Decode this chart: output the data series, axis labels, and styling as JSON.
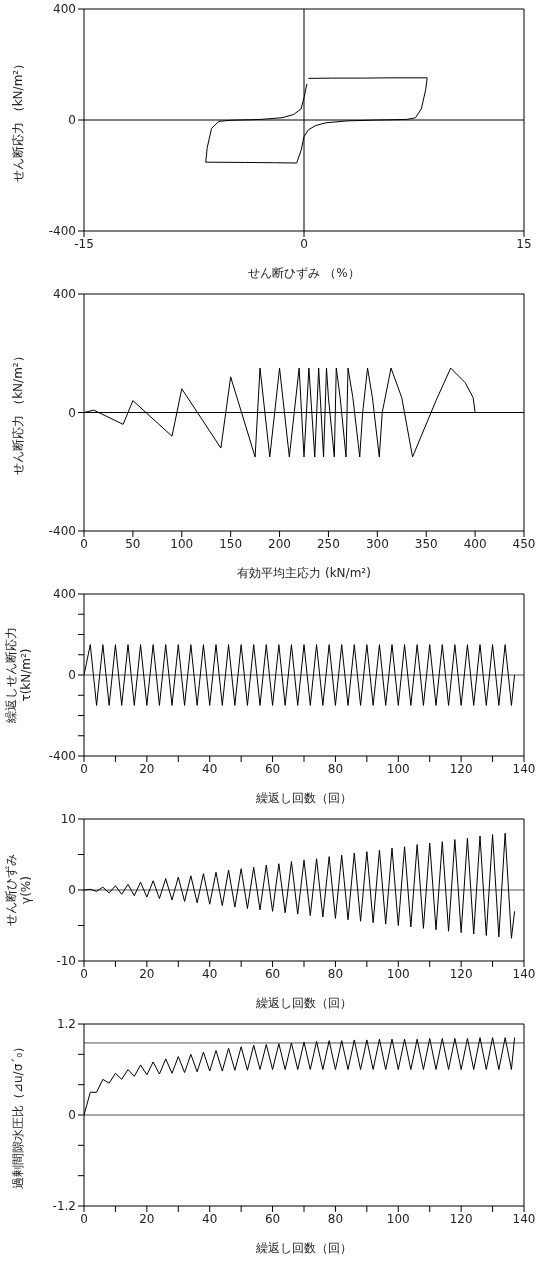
{
  "chart_data": [
    {
      "type": "line",
      "xlabel": "せん断ひずみ （%）",
      "ylabel": "せん断応力 （kN/m²）",
      "xlim": [
        -15,
        15
      ],
      "xticks": [
        -15,
        0,
        15
      ],
      "ylim": [
        -400,
        400
      ],
      "yticks": [
        -400,
        0,
        400
      ],
      "grid": false,
      "ref_lines": [
        {
          "axis": "x",
          "value": 0,
          "color": "#000000"
        },
        {
          "axis": "y",
          "value": 0,
          "color": "#000000"
        }
      ],
      "series": [
        {
          "color": "#000000",
          "x": [
            0.3,
            2,
            4,
            6,
            8.4,
            8.3,
            8.0,
            7.6,
            7,
            5,
            3,
            1.5,
            0.8,
            0.3,
            0,
            -0.2,
            -0.5,
            -2,
            -4,
            -6.7,
            -6.6,
            -6.3,
            -5.8,
            -5,
            -3,
            -1.5,
            -0.7,
            -0.2,
            0,
            0.2
          ],
          "values": [
            150,
            151,
            151,
            152,
            152,
            110,
            40,
            8,
            2,
            0,
            -3,
            -10,
            -20,
            -35,
            -60,
            -110,
            -155,
            -154,
            -153,
            -152,
            -100,
            -30,
            -5,
            -1,
            2,
            8,
            20,
            40,
            80,
            130
          ]
        }
      ]
    },
    {
      "type": "line",
      "xlabel": "有効平均主応力 (kN/m²)",
      "ylabel": "せん断応力 （kN/m²）",
      "xlim": [
        0,
        450
      ],
      "xticks": [
        0,
        50,
        100,
        150,
        200,
        250,
        300,
        350,
        400,
        450
      ],
      "ylim": [
        -400,
        400
      ],
      "yticks": [
        -400,
        0,
        400
      ],
      "grid": false,
      "ref_lines": [
        {
          "axis": "y",
          "value": 0,
          "color": "#000000"
        }
      ],
      "series": [
        {
          "color": "#000000",
          "x": [
            400,
            398,
            390,
            375,
            360,
            336,
            325,
            314,
            305,
            302,
            295,
            290,
            285,
            282,
            275,
            270,
            268,
            262,
            258,
            256,
            250,
            248,
            245,
            240,
            236,
            230,
            225,
            220,
            210,
            200,
            190,
            180,
            175,
            150,
            140,
            100,
            90,
            50,
            40,
            10,
            0
          ],
          "values": [
            0,
            50,
            100,
            150,
            40,
            -150,
            50,
            150,
            0,
            -150,
            50,
            150,
            0,
            -150,
            50,
            150,
            -150,
            50,
            150,
            -150,
            50,
            150,
            -150,
            150,
            -150,
            150,
            -150,
            150,
            -150,
            150,
            -150,
            150,
            -150,
            120,
            -120,
            80,
            -80,
            40,
            -40,
            8,
            0
          ]
        }
      ]
    },
    {
      "type": "line",
      "xlabel": "繰返し回数（回）",
      "ylabel": "繰返しせん断応力\nτ(kN/m²)",
      "xlim": [
        0,
        140
      ],
      "xticks": [
        0,
        {
          "value": 10,
          "label": null
        },
        20,
        {
          "value": 30,
          "label": null
        },
        40,
        {
          "value": 50,
          "label": null
        },
        60,
        {
          "value": 70,
          "label": null
        },
        80,
        {
          "value": 90,
          "label": null
        },
        100,
        {
          "value": 110,
          "label": null
        },
        120,
        {
          "value": 130,
          "label": null
        },
        140
      ],
      "ylim": [
        -400,
        400
      ],
      "yticks": [
        -400,
        {
          "value": -300,
          "label": null
        },
        {
          "value": -200,
          "label": null
        },
        {
          "value": -100,
          "label": null
        },
        0,
        {
          "value": 100,
          "label": null
        },
        {
          "value": 200,
          "label": null
        },
        {
          "value": 300,
          "label": null
        },
        400
      ],
      "grid": false,
      "ref_lines": [
        {
          "axis": "y",
          "value": 0,
          "color": "#555555"
        }
      ],
      "series": [
        {
          "color": "#000000",
          "x": [
            0,
            2,
            4,
            6,
            8,
            10,
            12,
            14,
            16,
            18,
            20,
            22,
            24,
            26,
            28,
            30,
            32,
            34,
            36,
            38,
            40,
            42,
            44,
            46,
            48,
            50,
            52,
            54,
            56,
            58,
            60,
            62,
            64,
            66,
            68,
            70,
            72,
            74,
            76,
            78,
            80,
            82,
            84,
            86,
            88,
            90,
            92,
            94,
            96,
            98,
            100,
            102,
            104,
            106,
            108,
            110,
            112,
            114,
            116,
            118,
            120,
            122,
            124,
            126,
            128,
            130,
            132,
            134,
            136,
            137
          ],
          "values": [
            0,
            150,
            -150,
            150,
            -150,
            150,
            -150,
            150,
            -150,
            150,
            -150,
            150,
            -150,
            150,
            -150,
            150,
            -150,
            150,
            -150,
            150,
            -150,
            150,
            -150,
            150,
            -150,
            150,
            -150,
            150,
            -150,
            150,
            -150,
            150,
            -150,
            150,
            -150,
            150,
            -150,
            150,
            -150,
            150,
            -150,
            150,
            -150,
            150,
            -150,
            150,
            -150,
            150,
            -150,
            150,
            -150,
            150,
            -150,
            150,
            -150,
            150,
            -150,
            150,
            -150,
            150,
            -150,
            150,
            -150,
            150,
            -150,
            150,
            -150,
            150,
            -150,
            0
          ]
        }
      ]
    },
    {
      "type": "line",
      "xlabel": "繰返し回数（回）",
      "ylabel": "せん断ひずみ\nγ(%)",
      "xlim": [
        0,
        140
      ],
      "xticks": [
        0,
        {
          "value": 10,
          "label": null
        },
        20,
        {
          "value": 30,
          "label": null
        },
        40,
        {
          "value": 50,
          "label": null
        },
        60,
        {
          "value": 70,
          "label": null
        },
        80,
        {
          "value": 90,
          "label": null
        },
        100,
        {
          "value": 110,
          "label": null
        },
        120,
        {
          "value": 130,
          "label": null
        },
        140
      ],
      "ylim": [
        -10,
        10
      ],
      "yticks": [
        -10,
        {
          "value": -5,
          "label": null
        },
        0,
        {
          "value": 5,
          "label": null
        },
        10
      ],
      "grid": false,
      "ref_lines": [
        {
          "axis": "y",
          "value": 0,
          "color": "#555555"
        }
      ],
      "series": [
        {
          "color": "#000000",
          "x": [
            0,
            2,
            4,
            6,
            8,
            10,
            12,
            14,
            16,
            18,
            20,
            22,
            24,
            26,
            28,
            30,
            32,
            34,
            36,
            38,
            40,
            42,
            44,
            46,
            48,
            50,
            52,
            54,
            56,
            58,
            60,
            62,
            64,
            66,
            68,
            70,
            72,
            74,
            76,
            78,
            80,
            82,
            84,
            86,
            88,
            90,
            92,
            94,
            96,
            98,
            100,
            102,
            104,
            106,
            108,
            110,
            112,
            114,
            116,
            118,
            120,
            122,
            124,
            126,
            128,
            130,
            132,
            134,
            136,
            137
          ],
          "values": [
            0,
            0.1,
            -0.2,
            0.4,
            -0.4,
            0.6,
            -0.6,
            0.8,
            -0.8,
            1.1,
            -1.0,
            1.3,
            -1.2,
            1.6,
            -1.4,
            1.8,
            -1.6,
            2.0,
            -1.8,
            2.3,
            -2.0,
            2.5,
            -2.2,
            2.8,
            -2.4,
            3.0,
            -2.6,
            3.2,
            -2.8,
            3.5,
            -3.0,
            3.7,
            -3.2,
            4.0,
            -3.4,
            4.2,
            -3.6,
            4.4,
            -3.8,
            4.7,
            -4.0,
            4.9,
            -4.2,
            5.2,
            -4.4,
            5.4,
            -4.6,
            5.6,
            -4.8,
            5.9,
            -5.0,
            6.1,
            -5.2,
            6.4,
            -5.4,
            6.6,
            -5.6,
            6.8,
            -5.8,
            7.1,
            -6.0,
            7.3,
            -6.2,
            7.6,
            -6.4,
            7.8,
            -6.6,
            8.0,
            -6.8,
            -3
          ]
        }
      ]
    },
    {
      "type": "line",
      "xlabel": "繰返し回数（回）",
      "ylabel": "過剰間隙水圧比（⊿u/σ´₀）",
      "xlim": [
        0,
        140
      ],
      "xticks": [
        0,
        {
          "value": 10,
          "label": null
        },
        20,
        {
          "value": 30,
          "label": null
        },
        40,
        {
          "value": 50,
          "label": null
        },
        60,
        {
          "value": 70,
          "label": null
        },
        80,
        {
          "value": 90,
          "label": null
        },
        100,
        {
          "value": 110,
          "label": null
        },
        120,
        {
          "value": 130,
          "label": null
        },
        140
      ],
      "ylim": [
        -1.2,
        1.2
      ],
      "yticks": [
        -1.2,
        {
          "value": -0.8,
          "label": null
        },
        {
          "value": -0.4,
          "label": null
        },
        0,
        {
          "value": 0.4,
          "label": null
        },
        {
          "value": 0.8,
          "label": null
        },
        1.2
      ],
      "grid": false,
      "ref_lines": [
        {
          "axis": "y",
          "value": 0,
          "color": "#555555"
        },
        {
          "axis": "y",
          "value": 0.95,
          "color": "#555555"
        }
      ],
      "series": [
        {
          "color": "#000000",
          "x": [
            0,
            2,
            4,
            6,
            8,
            10,
            12,
            14,
            16,
            18,
            20,
            22,
            24,
            26,
            28,
            30,
            32,
            34,
            36,
            38,
            40,
            42,
            44,
            46,
            48,
            50,
            52,
            54,
            56,
            58,
            60,
            62,
            64,
            66,
            68,
            70,
            72,
            74,
            76,
            78,
            80,
            82,
            84,
            86,
            88,
            90,
            92,
            94,
            96,
            98,
            100,
            102,
            104,
            106,
            108,
            110,
            112,
            114,
            116,
            118,
            120,
            122,
            124,
            126,
            128,
            130,
            132,
            134,
            136,
            137
          ],
          "values": [
            0,
            0.3,
            0.3,
            0.47,
            0.42,
            0.55,
            0.47,
            0.6,
            0.51,
            0.66,
            0.53,
            0.7,
            0.54,
            0.74,
            0.55,
            0.77,
            0.56,
            0.8,
            0.57,
            0.83,
            0.58,
            0.85,
            0.58,
            0.88,
            0.59,
            0.9,
            0.59,
            0.92,
            0.6,
            0.93,
            0.6,
            0.94,
            0.6,
            0.95,
            0.6,
            0.96,
            0.6,
            0.97,
            0.6,
            0.98,
            0.6,
            0.98,
            0.6,
            0.99,
            0.6,
            0.99,
            0.6,
            1.0,
            0.6,
            1.0,
            0.6,
            1.0,
            0.6,
            1.0,
            0.6,
            1.01,
            0.6,
            1.01,
            0.6,
            1.01,
            0.6,
            1.01,
            0.6,
            1.02,
            0.6,
            1.02,
            0.6,
            1.02,
            0.6,
            1.02
          ]
        }
      ]
    }
  ]
}
